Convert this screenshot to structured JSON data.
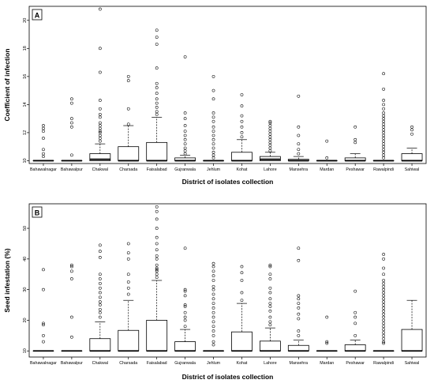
{
  "chart_data": [
    {
      "type": "boxplot",
      "panel_label": "A",
      "xlabel": "District of isolates collection",
      "ylabel": "Coefficient of infection",
      "ylim": [
        9.8,
        21
      ],
      "yticks": [
        10,
        12,
        14,
        16,
        18,
        20
      ],
      "grid": false,
      "categories": [
        "Bahawalnagar",
        "Bahawalpur",
        "Chakwal",
        "Charsada",
        "Faisalabad",
        "Gujranwala",
        "Jehlum",
        "Kohat",
        "Lahore",
        "Mansehra",
        "Mardan",
        "Peshawar",
        "Rawalpindi",
        "Sahiwal"
      ],
      "boxes": [
        {
          "q1": 10,
          "median": 10,
          "q3": 10,
          "whisker_low": 10,
          "whisker_high": 10,
          "outliers": [
            10.3,
            10.5,
            10.8,
            11.6,
            12.1,
            12.3,
            12.5
          ]
        },
        {
          "q1": 10,
          "median": 10,
          "q3": 10,
          "whisker_low": 10,
          "whisker_high": 10,
          "outliers": [
            10.4,
            12.4,
            12.7,
            13.0,
            14.1,
            14.4
          ]
        },
        {
          "q1": 10,
          "median": 10.1,
          "q3": 10.5,
          "whisker_low": 10,
          "whisker_high": 11.2,
          "outliers": [
            11.4,
            11.6,
            11.8,
            12.0,
            12.1,
            12.3,
            12.5,
            12.7,
            13.1,
            13.3,
            13.7,
            14.3,
            16.3,
            18.0,
            20.8
          ]
        },
        {
          "q1": 10,
          "median": 10,
          "q3": 11.0,
          "whisker_low": 10,
          "whisker_high": 12.5,
          "outliers": [
            12.6,
            13.7,
            15.7,
            16.0
          ]
        },
        {
          "q1": 10,
          "median": 10,
          "q3": 11.3,
          "whisker_low": 10,
          "whisker_high": 13.1,
          "outliers": [
            13.3,
            13.5,
            13.8,
            14.1,
            14.4,
            14.8,
            15.2,
            15.5,
            16.6,
            18.3,
            18.8,
            19.3
          ]
        },
        {
          "q1": 10,
          "median": 10,
          "q3": 10.2,
          "whisker_low": 10,
          "whisker_high": 10.4,
          "outliers": [
            10.5,
            10.7,
            10.9,
            11.2,
            11.5,
            11.8,
            12.1,
            12.5,
            13.0,
            13.4,
            17.4
          ]
        },
        {
          "q1": 10,
          "median": 10,
          "q3": 10,
          "whisker_low": 10,
          "whisker_high": 10,
          "outliers": [
            10.2,
            10.4,
            10.6,
            10.9,
            11.2,
            11.5,
            11.8,
            12.1,
            12.4,
            12.8,
            13.1,
            13.4,
            14.4,
            15.0,
            16.0
          ]
        },
        {
          "q1": 10,
          "median": 10,
          "q3": 10.6,
          "whisker_low": 10,
          "whisker_high": 11.5,
          "outliers": [
            11.7,
            12.0,
            12.4,
            12.8,
            13.2,
            13.9,
            14.7
          ]
        },
        {
          "q1": 10,
          "median": 10.1,
          "q3": 10.3,
          "whisker_low": 10,
          "whisker_high": 10.6,
          "outliers": [
            10.7,
            10.9,
            11.1,
            11.3,
            11.5,
            11.7,
            11.9,
            12.1,
            12.3,
            12.5,
            12.7,
            12.8
          ]
        },
        {
          "q1": 10,
          "median": 10,
          "q3": 10.1,
          "whisker_low": 10,
          "whisker_high": 10.3,
          "outliers": [
            10.5,
            10.8,
            11.2,
            11.8,
            12.4,
            14.6
          ]
        },
        {
          "q1": 10,
          "median": 10,
          "q3": 10,
          "whisker_low": 10,
          "whisker_high": 10,
          "outliers": [
            10.2,
            11.4
          ]
        },
        {
          "q1": 10,
          "median": 10,
          "q3": 10.2,
          "whisker_low": 10,
          "whisker_high": 10.5,
          "outliers": [
            11.3,
            11.5,
            12.4
          ]
        },
        {
          "q1": 10,
          "median": 10,
          "q3": 10,
          "whisker_low": 10,
          "whisker_high": 10,
          "outliers": [
            10.2,
            10.4,
            10.6,
            10.8,
            11.0,
            11.2,
            11.4,
            11.6,
            11.8,
            12.0,
            12.2,
            12.4,
            12.6,
            12.8,
            13.0,
            13.2,
            13.4,
            13.7,
            14.0,
            14.3,
            15.1,
            16.2
          ]
        },
        {
          "q1": 10,
          "median": 10,
          "q3": 10.5,
          "whisker_low": 10,
          "whisker_high": 10.9,
          "outliers": [
            11.9,
            12.2,
            12.4
          ]
        }
      ]
    },
    {
      "type": "boxplot",
      "panel_label": "B",
      "xlabel": "District of isolates collection",
      "ylabel": "Seed infestation (%)",
      "ylim": [
        8,
        58
      ],
      "yticks": [
        10,
        20,
        30,
        40,
        50
      ],
      "grid": false,
      "categories": [
        "Bahawalnagar",
        "Bahawalpur",
        "Chakwal",
        "Charsada",
        "Faisalabad",
        "Gujranwala",
        "Jehlum",
        "Kohat",
        "Lahore",
        "Mansehra",
        "Mardan",
        "Peshawar",
        "Rawalpindi",
        "Sahiwal"
      ],
      "boxes": [
        {
          "q1": 10,
          "median": 10,
          "q3": 10,
          "whisker_low": 10,
          "whisker_high": 10,
          "outliers": [
            13,
            15,
            18.5,
            19,
            30,
            36.5
          ]
        },
        {
          "q1": 10,
          "median": 10,
          "q3": 10,
          "whisker_low": 10,
          "whisker_high": 10,
          "outliers": [
            14.5,
            21,
            33.5,
            36,
            37.5,
            38
          ]
        },
        {
          "q1": 10,
          "median": 10,
          "q3": 14,
          "whisker_low": 10,
          "whisker_high": 19.5,
          "outliers": [
            21,
            22.5,
            23.5,
            25,
            26,
            27.5,
            29,
            30.5,
            32,
            33.5,
            35,
            40.5,
            42.5,
            44.5
          ]
        },
        {
          "q1": 10,
          "median": 10,
          "q3": 16.7,
          "whisker_low": 10,
          "whisker_high": 26.5,
          "outliers": [
            28.5,
            30.5,
            32.5,
            35,
            40,
            42,
            45
          ]
        },
        {
          "q1": 10,
          "median": 10,
          "q3": 20,
          "whisker_low": 10,
          "whisker_high": 33,
          "outliers": [
            34,
            35,
            36,
            36.5,
            37,
            38,
            40,
            41,
            43,
            45,
            47,
            50,
            53,
            55.5,
            57
          ]
        },
        {
          "q1": 10,
          "median": 10,
          "q3": 13,
          "whisker_low": 10,
          "whisker_high": 17,
          "outliers": [
            18,
            20,
            21,
            22.5,
            24.5,
            25,
            28,
            29.5,
            30,
            43.5
          ]
        },
        {
          "q1": 10,
          "median": 10,
          "q3": 10,
          "whisker_low": 10,
          "whisker_high": 10,
          "outliers": [
            12,
            13,
            15,
            16.5,
            18,
            19.5,
            21,
            22.5,
            24,
            25.5,
            27,
            28.5,
            30,
            31,
            33,
            34.5,
            36,
            37.5,
            38.5
          ]
        },
        {
          "q1": 10,
          "median": 10,
          "q3": 16.2,
          "whisker_low": 10,
          "whisker_high": 25.5,
          "outliers": [
            26.5,
            29,
            33,
            35.5,
            37.5
          ]
        },
        {
          "q1": 10,
          "median": 10,
          "q3": 13.2,
          "whisker_low": 10,
          "whisker_high": 17.5,
          "outliers": [
            18.5,
            19.5,
            21,
            23,
            24.5,
            25.5,
            27,
            29,
            30.5,
            33.5,
            35,
            37.5,
            38
          ]
        },
        {
          "q1": 10,
          "median": 10,
          "q3": 11.8,
          "whisker_low": 10,
          "whisker_high": 13.5,
          "outliers": [
            15,
            16.5,
            20.5,
            22,
            24,
            25.5,
            27,
            28,
            39.5,
            43.5
          ]
        },
        {
          "q1": 10,
          "median": 10,
          "q3": 10,
          "whisker_low": 10,
          "whisker_high": 10,
          "outliers": [
            12.5,
            13,
            21
          ]
        },
        {
          "q1": 10,
          "median": 10,
          "q3": 12,
          "whisker_low": 10,
          "whisker_high": 13.5,
          "outliers": [
            15,
            19,
            21,
            22.5,
            29.5
          ]
        },
        {
          "q1": 10,
          "median": 10,
          "q3": 10,
          "whisker_low": 10,
          "whisker_high": 10,
          "outliers": [
            12.5,
            13,
            14,
            15,
            16,
            17,
            18,
            19,
            20,
            21,
            22,
            23,
            24,
            25,
            26,
            27,
            28,
            29,
            30,
            31,
            32,
            33,
            35,
            37,
            40,
            41.5
          ]
        },
        {
          "q1": 10,
          "median": 10,
          "q3": 17,
          "whisker_low": 10,
          "whisker_high": 26.5,
          "outliers": []
        }
      ]
    }
  ]
}
